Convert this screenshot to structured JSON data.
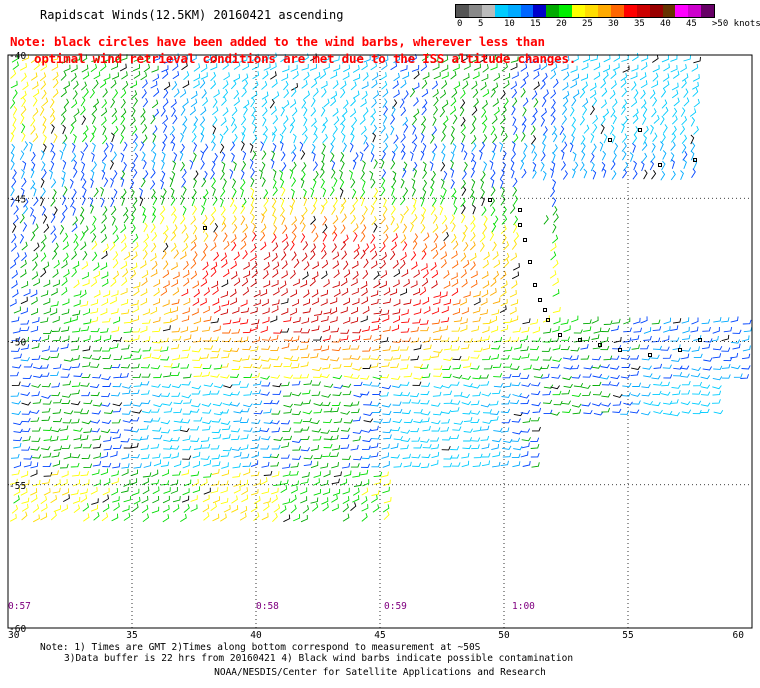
{
  "title": "Rapidscat Winds(12.5KM) 20160421 ascending",
  "note": {
    "line1": "Note: black circles have been added to the wind barbs, wherever less than",
    "line2": "optimal wind retrieval conditions are met due to the ISS altitude changes."
  },
  "legend": {
    "labels": [
      "0",
      "5",
      "10",
      "15",
      "20",
      "25",
      "30",
      "35",
      "40",
      "45",
      ">50 knots"
    ],
    "colors": [
      "#555555",
      "#888888",
      "#bbbbbb",
      "#00ccff",
      "#00aaff",
      "#0066ff",
      "#0000cc",
      "#00aa00",
      "#00ee00",
      "#ffff00",
      "#ffdd00",
      "#ffaa00",
      "#ff6600",
      "#ff0000",
      "#cc0000",
      "#990000",
      "#663300",
      "#ff00ff",
      "#cc00cc",
      "#660066"
    ]
  },
  "axes": {
    "lon_labels": [
      "30",
      "35",
      "40",
      "45",
      "50",
      "55",
      "60"
    ],
    "lat_labels": [
      "-40",
      "-45",
      "-50",
      "-55",
      "-60"
    ]
  },
  "time_labels": [
    "0:57",
    "0:58",
    "0:59",
    "1:00"
  ],
  "footer": {
    "line1": "Note: 1) Times are GMT 2)Times along bottom correspond to measurement at ~50S",
    "line2": "3)Data buffer is 22 hrs from 20160421 4) Black wind barbs indicate possible contamination",
    "credit": "NOAA/NESDIS/Center for Satellite Applications and Research"
  },
  "colors": {
    "note": "#ff0000",
    "time_label": "#800080",
    "grid": "#000000"
  }
}
